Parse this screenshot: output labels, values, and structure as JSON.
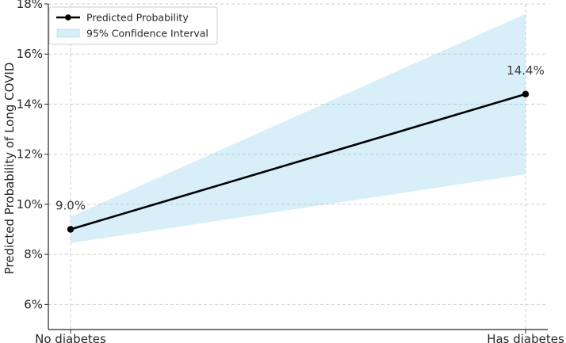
{
  "chart_data": {
    "type": "line",
    "title": "",
    "xlabel": "",
    "ylabel": "Predicted Probability of Long COVID",
    "categories": [
      "No diabetes",
      "Has diabetes"
    ],
    "series": [
      {
        "name": "Predicted Probability",
        "values": [
          9.0,
          14.4
        ],
        "color": "#000000"
      }
    ],
    "confidence_interval": {
      "name": "95% Confidence Interval",
      "lower": [
        8.45,
        11.2
      ],
      "upper": [
        9.5,
        17.6
      ],
      "color": "#87ceeb"
    },
    "data_labels": [
      "9.0%",
      "14.4%"
    ],
    "y_ticks": [
      6,
      8,
      10,
      12,
      14,
      16,
      18
    ],
    "y_tick_labels": [
      "6%",
      "8%",
      "10%",
      "12%",
      "14%",
      "16%",
      "18%"
    ],
    "ylim": [
      5.0,
      18.0
    ],
    "grid": true,
    "legend_position": "top-left"
  }
}
